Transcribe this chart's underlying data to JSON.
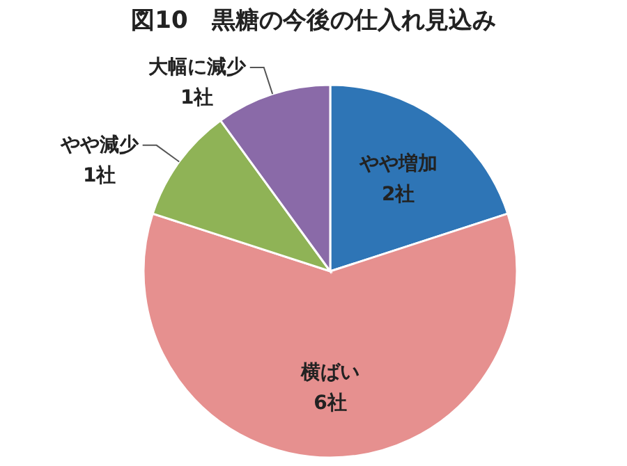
{
  "chart_data": {
    "type": "pie",
    "title": "図10　黒糖の今後の仕入れ見込み",
    "categories": [
      "やや増加",
      "横ばい",
      "やや減少",
      "大幅に減少"
    ],
    "values": [
      2,
      6,
      1,
      1
    ],
    "value_labels": [
      "2社",
      "6社",
      "1社",
      "1社"
    ],
    "colors": [
      "#2e75b6",
      "#e6908f",
      "#8fb356",
      "#8a6aa8"
    ]
  }
}
